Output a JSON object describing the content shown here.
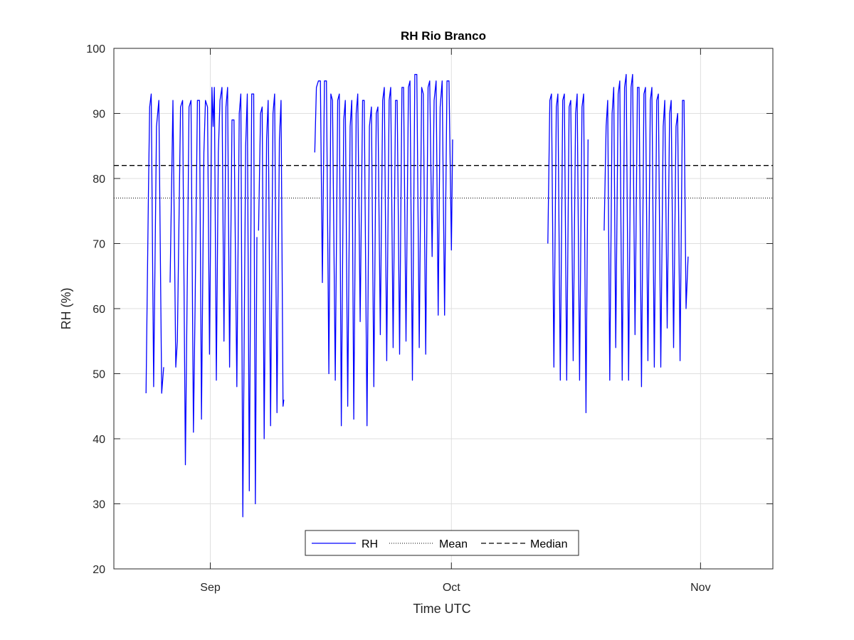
{
  "chart_data": {
    "type": "line",
    "title": "RH Rio Branco",
    "xlabel": "Time UTC",
    "ylabel": "RH (%)",
    "ylim": [
      20,
      100
    ],
    "yticks": [
      20,
      30,
      40,
      50,
      60,
      70,
      80,
      90,
      100
    ],
    "xlim": [
      "2023-08-20",
      "2023-11-10"
    ],
    "xticks": [
      {
        "date": "2023-09-01",
        "label": "Sep"
      },
      {
        "date": "2023-10-01",
        "label": "Oct"
      },
      {
        "date": "2023-11-01",
        "label": "Nov"
      }
    ],
    "grid": true,
    "legend": {
      "location": "bottom-center",
      "entries": [
        "RH",
        "Mean",
        "Median"
      ]
    },
    "colors": {
      "RH": "#0000ff",
      "Mean": "#000000",
      "Median": "#000000"
    },
    "mean": 77,
    "median": 82,
    "series": [
      {
        "name": "RH",
        "style": "solid",
        "segments": [
          {
            "start": "2023-08-24",
            "points": [
              [
                0.0,
                47
              ],
              [
                0.3,
                78
              ],
              [
                0.45,
                91
              ],
              [
                0.65,
                93
              ],
              [
                0.95,
                48
              ],
              [
                1.3,
                88
              ],
              [
                1.6,
                92
              ],
              [
                1.95,
                47
              ],
              [
                2.2,
                51
              ]
            ]
          },
          {
            "start": "2023-08-27",
            "points": [
              [
                0.0,
                64
              ],
              [
                0.35,
                92
              ],
              [
                0.7,
                51
              ],
              [
                0.9,
                55
              ],
              [
                1.3,
                91
              ],
              [
                1.55,
                92
              ],
              [
                1.9,
                36
              ],
              [
                2.2,
                72
              ],
              [
                2.35,
                91
              ],
              [
                2.6,
                92
              ],
              [
                2.9,
                41
              ],
              [
                3.1,
                60
              ],
              [
                3.4,
                92
              ],
              [
                3.65,
                92
              ],
              [
                3.9,
                43
              ],
              [
                4.2,
                84
              ],
              [
                4.4,
                92
              ],
              [
                4.65,
                91
              ],
              [
                4.9,
                53
              ],
              [
                5.2,
                94
              ],
              [
                5.35,
                88
              ],
              [
                5.5,
                94
              ],
              [
                5.75,
                49
              ],
              [
                6.0,
                84
              ],
              [
                6.2,
                92
              ],
              [
                6.45,
                94
              ],
              [
                6.7,
                55
              ],
              [
                6.95,
                91
              ],
              [
                7.15,
                94
              ],
              [
                7.4,
                51
              ],
              [
                7.7,
                89
              ],
              [
                7.95,
                89
              ],
              [
                8.3,
                48
              ],
              [
                8.6,
                90
              ],
              [
                8.8,
                93
              ],
              [
                9.05,
                28
              ],
              [
                9.4,
                85
              ],
              [
                9.6,
                93
              ],
              [
                9.85,
                32
              ],
              [
                10.15,
                93
              ],
              [
                10.4,
                93
              ],
              [
                10.6,
                30
              ],
              [
                10.8,
                71
              ]
            ]
          },
          {
            "start": "2023-09-07",
            "points": [
              [
                0.0,
                72
              ],
              [
                0.25,
                90
              ],
              [
                0.45,
                91
              ],
              [
                0.7,
                40
              ],
              [
                1.0,
                86
              ],
              [
                1.2,
                92
              ],
              [
                1.5,
                42
              ],
              [
                1.8,
                90
              ],
              [
                2.0,
                93
              ],
              [
                2.3,
                44
              ],
              [
                2.6,
                86
              ],
              [
                2.8,
                92
              ],
              [
                3.05,
                45
              ],
              [
                3.15,
                46
              ]
            ]
          },
          {
            "start": "2023-09-14",
            "points": [
              [
                0.0,
                84
              ],
              [
                0.2,
                94
              ],
              [
                0.45,
                95
              ],
              [
                0.7,
                95
              ],
              [
                0.95,
                64
              ],
              [
                1.2,
                95
              ],
              [
                1.45,
                95
              ],
              [
                1.75,
                50
              ],
              [
                2.0,
                93
              ],
              [
                2.2,
                92
              ],
              [
                2.55,
                49
              ],
              [
                2.85,
                92
              ],
              [
                3.05,
                93
              ],
              [
                3.3,
                42
              ],
              [
                3.6,
                89
              ],
              [
                3.8,
                92
              ],
              [
                4.1,
                45
              ],
              [
                4.4,
                88
              ],
              [
                4.6,
                92
              ],
              [
                4.85,
                43
              ],
              [
                5.15,
                90
              ],
              [
                5.35,
                93
              ],
              [
                5.65,
                58
              ],
              [
                5.95,
                92
              ],
              [
                6.15,
                92
              ],
              [
                6.5,
                42
              ],
              [
                6.8,
                88
              ],
              [
                7.05,
                91
              ],
              [
                7.35,
                48
              ],
              [
                7.65,
                90
              ],
              [
                7.85,
                91
              ],
              [
                8.15,
                56
              ],
              [
                8.45,
                92
              ],
              [
                8.65,
                94
              ],
              [
                8.95,
                52
              ],
              [
                9.25,
                92
              ],
              [
                9.45,
                94
              ],
              [
                9.75,
                54
              ],
              [
                10.05,
                92
              ],
              [
                10.25,
                92
              ],
              [
                10.55,
                53
              ],
              [
                10.85,
                94
              ],
              [
                11.05,
                94
              ],
              [
                11.35,
                55
              ],
              [
                11.65,
                94
              ],
              [
                11.85,
                95
              ],
              [
                12.15,
                49
              ],
              [
                12.45,
                96
              ],
              [
                12.7,
                96
              ],
              [
                13.0,
                54
              ],
              [
                13.3,
                94
              ],
              [
                13.5,
                93
              ],
              [
                13.8,
                53
              ],
              [
                14.1,
                94
              ],
              [
                14.3,
                95
              ],
              [
                14.6,
                68
              ],
              [
                14.85,
                92
              ],
              [
                15.1,
                95
              ],
              [
                15.35,
                59
              ],
              [
                15.6,
                91
              ],
              [
                15.85,
                95
              ],
              [
                16.15,
                59
              ],
              [
                16.45,
                95
              ],
              [
                16.7,
                95
              ],
              [
                17.0,
                69
              ],
              [
                17.15,
                86
              ]
            ]
          },
          {
            "start": "2023-10-13",
            "points": [
              [
                0.0,
                70
              ],
              [
                0.25,
                92
              ],
              [
                0.45,
                93
              ],
              [
                0.75,
                51
              ],
              [
                1.05,
                91
              ],
              [
                1.25,
                93
              ],
              [
                1.55,
                49
              ],
              [
                1.85,
                92
              ],
              [
                2.05,
                93
              ],
              [
                2.35,
                49
              ],
              [
                2.65,
                91
              ],
              [
                2.85,
                92
              ],
              [
                3.15,
                52
              ],
              [
                3.45,
                90
              ],
              [
                3.65,
                93
              ],
              [
                3.95,
                49
              ],
              [
                4.25,
                91
              ],
              [
                4.45,
                93
              ],
              [
                4.75,
                44
              ],
              [
                5.0,
                86
              ]
            ]
          },
          {
            "start": "2023-10-20",
            "points": [
              [
                0.0,
                72
              ],
              [
                0.25,
                88
              ],
              [
                0.45,
                92
              ],
              [
                0.7,
                49
              ],
              [
                1.0,
                90
              ],
              [
                1.2,
                94
              ],
              [
                1.45,
                54
              ],
              [
                1.75,
                93
              ],
              [
                1.95,
                95
              ],
              [
                2.25,
                49
              ],
              [
                2.55,
                94
              ],
              [
                2.75,
                96
              ],
              [
                3.05,
                49
              ],
              [
                3.35,
                94
              ],
              [
                3.55,
                96
              ],
              [
                3.85,
                56
              ],
              [
                4.15,
                94
              ],
              [
                4.35,
                94
              ],
              [
                4.65,
                48
              ],
              [
                4.95,
                93
              ],
              [
                5.15,
                94
              ],
              [
                5.45,
                52
              ],
              [
                5.75,
                92
              ],
              [
                5.95,
                94
              ],
              [
                6.25,
                51
              ],
              [
                6.55,
                92
              ],
              [
                6.75,
                93
              ],
              [
                7.05,
                51
              ],
              [
                7.35,
                88
              ],
              [
                7.55,
                92
              ],
              [
                7.85,
                57
              ],
              [
                8.15,
                90
              ],
              [
                8.35,
                92
              ],
              [
                8.65,
                54
              ],
              [
                8.95,
                88
              ],
              [
                9.15,
                90
              ],
              [
                9.45,
                52
              ],
              [
                9.75,
                92
              ],
              [
                9.95,
                92
              ],
              [
                10.2,
                60
              ],
              [
                10.45,
                68
              ]
            ]
          }
        ]
      },
      {
        "name": "Mean",
        "style": "dotted",
        "value": 77
      },
      {
        "name": "Median",
        "style": "dashed",
        "value": 82
      }
    ]
  }
}
